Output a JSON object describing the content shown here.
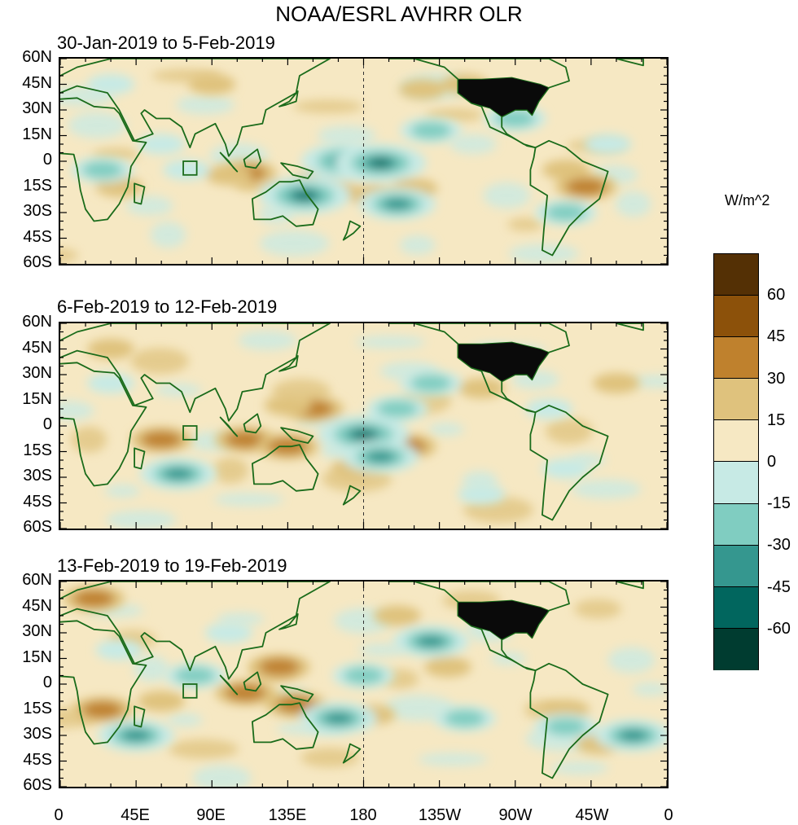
{
  "title": "NOAA/ESRL AVHRR OLR",
  "units": "W/m^2",
  "panels": [
    {
      "title": "30-Jan-2019 to 5-Feb-2019"
    },
    {
      "title": "6-Feb-2019 to 12-Feb-2019"
    },
    {
      "title": "13-Feb-2019 to 19-Feb-2019"
    }
  ],
  "lat_labels": [
    "60N",
    "45N",
    "30N",
    "15N",
    "0",
    "15S",
    "30S",
    "45S",
    "60S"
  ],
  "lon_labels": [
    "0",
    "45E",
    "90E",
    "135E",
    "180",
    "135W",
    "90W",
    "45W",
    "0"
  ],
  "colorbar": {
    "labels": [
      "60",
      "45",
      "30",
      "15",
      "0",
      "-15",
      "-30",
      "-45",
      "-60"
    ],
    "colors": [
      "#543005",
      "#8c510a",
      "#bf812d",
      "#dfc27d",
      "#f6e8c3",
      "#c7eae5",
      "#80cdc1",
      "#35978f",
      "#01665e",
      "#003c30"
    ]
  },
  "map_data": {
    "panel_anomalies": [
      [
        {
          "lon": 110,
          "lat": -7,
          "level": 2
        },
        {
          "lon": 100,
          "lat": -8,
          "level": 1
        },
        {
          "lon": 150,
          "lat": -12,
          "level": 1
        },
        {
          "lon": 165,
          "lat": -18,
          "level": 1
        },
        {
          "lon": 185,
          "lat": -20,
          "level": 1
        },
        {
          "lon": 210,
          "lat": -16,
          "level": 1
        },
        {
          "lon": 312,
          "lat": -15,
          "level": 2
        },
        {
          "lon": 300,
          "lat": -5,
          "level": 1
        },
        {
          "lon": 215,
          "lat": 42,
          "level": 1
        },
        {
          "lon": 35,
          "lat": -15,
          "level": 1
        },
        {
          "lon": 90,
          "lat": 45,
          "level": 1
        },
        {
          "lon": 240,
          "lat": 45,
          "level": 1
        },
        {
          "lon": 170,
          "lat": 0,
          "level": -4
        },
        {
          "lon": 190,
          "lat": -1,
          "level": -4
        },
        {
          "lon": 145,
          "lat": -20,
          "level": -4
        },
        {
          "lon": 200,
          "lat": -25,
          "level": -3
        },
        {
          "lon": 220,
          "lat": 18,
          "level": -2
        },
        {
          "lon": 270,
          "lat": 25,
          "level": -2
        },
        {
          "lon": 25,
          "lat": -5,
          "level": -2
        },
        {
          "lon": 75,
          "lat": -5,
          "level": -1
        },
        {
          "lon": 60,
          "lat": 10,
          "level": -1
        },
        {
          "lon": 300,
          "lat": -30,
          "level": -2
        },
        {
          "lon": 30,
          "lat": 45,
          "level": -1
        },
        {
          "lon": 325,
          "lat": 10,
          "level": -1
        }
      ],
      [
        {
          "lon": 60,
          "lat": -8,
          "level": 2
        },
        {
          "lon": 110,
          "lat": -8,
          "level": 2
        },
        {
          "lon": 135,
          "lat": -12,
          "level": 2
        },
        {
          "lon": 150,
          "lat": 10,
          "level": 2
        },
        {
          "lon": 135,
          "lat": 12,
          "level": 1
        },
        {
          "lon": 205,
          "lat": -12,
          "level": 2
        },
        {
          "lon": 175,
          "lat": -25,
          "level": 1
        },
        {
          "lon": 250,
          "lat": 22,
          "level": 1
        },
        {
          "lon": 30,
          "lat": 45,
          "level": 1
        },
        {
          "lon": 330,
          "lat": 25,
          "level": 1
        },
        {
          "lon": 180,
          "lat": -5,
          "level": -4
        },
        {
          "lon": 190,
          "lat": -18,
          "level": -3
        },
        {
          "lon": 200,
          "lat": 10,
          "level": -2
        },
        {
          "lon": 220,
          "lat": 25,
          "level": -2
        },
        {
          "lon": 255,
          "lat": 42,
          "level": -1
        },
        {
          "lon": 70,
          "lat": -28,
          "level": -3
        },
        {
          "lon": 30,
          "lat": 25,
          "level": -1
        },
        {
          "lon": 290,
          "lat": 10,
          "level": -1
        },
        {
          "lon": 250,
          "lat": -40,
          "level": -1
        },
        {
          "lon": 300,
          "lat": -25,
          "level": -1
        }
      ],
      [
        {
          "lon": 25,
          "lat": -15,
          "level": 2
        },
        {
          "lon": 60,
          "lat": -10,
          "level": 1
        },
        {
          "lon": 110,
          "lat": -5,
          "level": 2
        },
        {
          "lon": 140,
          "lat": -12,
          "level": 2
        },
        {
          "lon": 130,
          "lat": 10,
          "level": 2
        },
        {
          "lon": 185,
          "lat": -18,
          "level": 1
        },
        {
          "lon": 300,
          "lat": -15,
          "level": 1
        },
        {
          "lon": 320,
          "lat": -35,
          "level": 1
        },
        {
          "lon": 20,
          "lat": 50,
          "level": 2
        },
        {
          "lon": 200,
          "lat": 40,
          "level": 1
        },
        {
          "lon": 230,
          "lat": 10,
          "level": 1
        },
        {
          "lon": 220,
          "lat": 25,
          "level": -3
        },
        {
          "lon": 165,
          "lat": -20,
          "level": -3
        },
        {
          "lon": 180,
          "lat": 5,
          "level": -2
        },
        {
          "lon": 240,
          "lat": -20,
          "level": -2
        },
        {
          "lon": 300,
          "lat": -25,
          "level": -2
        },
        {
          "lon": 340,
          "lat": -30,
          "level": -3
        },
        {
          "lon": 45,
          "lat": -30,
          "level": -3
        },
        {
          "lon": 80,
          "lat": 5,
          "level": -2
        },
        {
          "lon": 35,
          "lat": 20,
          "level": -1
        },
        {
          "lon": 100,
          "lat": 30,
          "level": -1
        }
      ]
    ]
  }
}
